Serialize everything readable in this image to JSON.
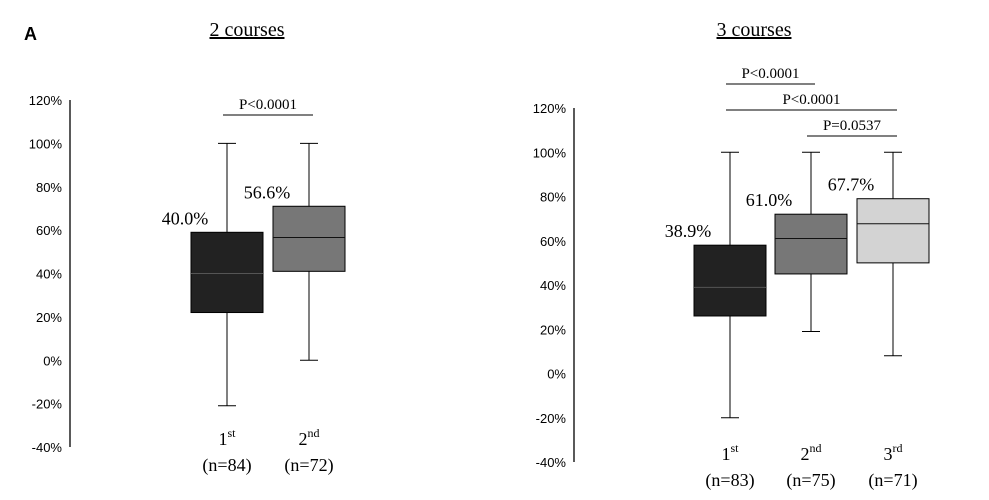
{
  "panel_label": "A",
  "chart_data": [
    {
      "type": "boxplot",
      "title": "2 courses",
      "ylim": [
        -40,
        120
      ],
      "yticks": [
        -40,
        -20,
        0,
        20,
        40,
        60,
        80,
        100,
        120
      ],
      "ytick_labels": [
        "-40%",
        "-20%",
        "0%",
        "20%",
        "40%",
        "60%",
        "80%",
        "100%",
        "120%"
      ],
      "categories": [
        {
          "ordinal": "1",
          "suffix": "st",
          "n_label": "(n=84)"
        },
        {
          "ordinal": "2",
          "suffix": "nd",
          "n_label": "(n=72)"
        }
      ],
      "boxes": [
        {
          "min": -21,
          "q1": 22,
          "median": 40,
          "q3": 59,
          "max": 100,
          "label": "40.0%",
          "color": "#222222"
        },
        {
          "min": 0,
          "q1": 41,
          "median": 56.6,
          "q3": 71,
          "max": 100,
          "label": "56.6%",
          "color": "#777777"
        }
      ],
      "comparisons": [
        {
          "from": 0,
          "to": 1,
          "label": "P<0.0001",
          "level": 0
        }
      ]
    },
    {
      "type": "boxplot",
      "title": "3 courses",
      "ylim": [
        -40,
        120
      ],
      "yticks": [
        -40,
        -20,
        0,
        20,
        40,
        60,
        80,
        100,
        120
      ],
      "ytick_labels": [
        "-40%",
        "-20%",
        "0%",
        "20%",
        "40%",
        "60%",
        "80%",
        "100%",
        "120%"
      ],
      "categories": [
        {
          "ordinal": "1",
          "suffix": "st",
          "n_label": "(n=83)"
        },
        {
          "ordinal": "2",
          "suffix": "nd",
          "n_label": "(n=75)"
        },
        {
          "ordinal": "3",
          "suffix": "rd",
          "n_label": "(n=71)"
        }
      ],
      "boxes": [
        {
          "min": -20,
          "q1": 26,
          "median": 38.9,
          "q3": 58,
          "max": 100,
          "label": "38.9%",
          "color": "#222222"
        },
        {
          "min": 19,
          "q1": 45,
          "median": 61,
          "q3": 72,
          "max": 100,
          "label": "61.0%",
          "color": "#777777"
        },
        {
          "min": 8,
          "q1": 50,
          "median": 67.7,
          "q3": 79,
          "max": 100,
          "label": "67.7%",
          "color": "#d3d3d3"
        }
      ],
      "comparisons": [
        {
          "from": 0,
          "to": 1,
          "label": "P<0.0001",
          "level": 2
        },
        {
          "from": 0,
          "to": 2,
          "label": "P<0.0001",
          "level": 1
        },
        {
          "from": 1,
          "to": 2,
          "label": "P=0.0537",
          "level": 0
        }
      ]
    }
  ]
}
